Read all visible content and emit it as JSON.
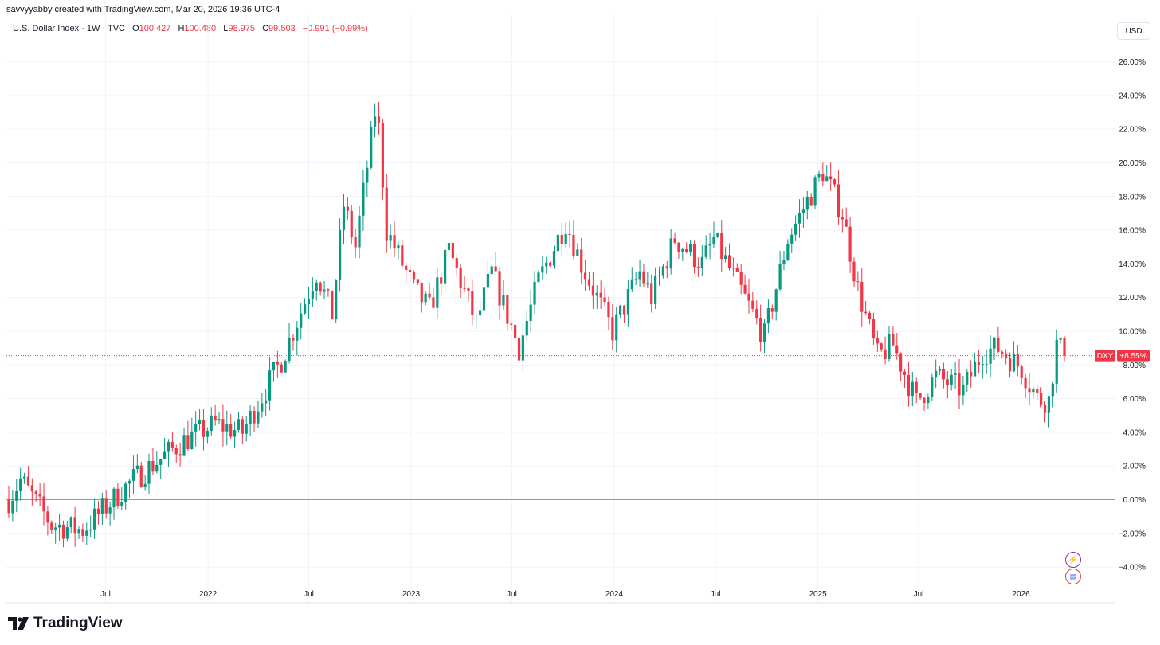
{
  "header": {
    "caption": "savvyyabby created with TradingView.com, Mar 20, 2026 19:36 UTC-4",
    "symbol": "U.S. Dollar Index · 1W · TVC",
    "o_label": "O",
    "o_value": "100.427",
    "h_label": "H",
    "h_value": "100.480",
    "l_label": "L",
    "l_value": "98.975",
    "c_label": "C",
    "c_value": "99.503",
    "change": "−0.991 (−0.99%)"
  },
  "currency_button": "USD",
  "brand": "TradingView",
  "badges": {
    "symbol": "DXY",
    "value": "+8.55%"
  },
  "icons": [
    "lightning-event-icon",
    "us-flag-event-icon"
  ],
  "colors": {
    "up": "#089981",
    "down": "#f23645",
    "grid": "#f0f3fa",
    "zero_line": "#9598a1"
  },
  "chart_data": {
    "type": "candlestick",
    "units": "percent change",
    "y_ticks": [
      "26.00%",
      "24.00%",
      "22.00%",
      "20.00%",
      "18.00%",
      "16.00%",
      "14.00%",
      "12.00%",
      "10.00%",
      "8.00%",
      "6.00%",
      "4.00%",
      "2.00%",
      "0.00%",
      "−2.00%",
      "−4.00%"
    ],
    "y_range": [
      -4.6,
      27.5
    ],
    "x_ticks": [
      "Jul",
      "2022",
      "Jul",
      "2023",
      "Jul",
      "2024",
      "Jul",
      "2025",
      "Jul",
      "2026"
    ],
    "x_range": [
      "2021-01-08",
      "2026-05-15"
    ],
    "last_value": 8.55,
    "key_points": [
      {
        "date": "2021-01-08",
        "value": 0.0
      },
      {
        "date": "2021-01-29",
        "value": 1.2
      },
      {
        "date": "2021-03-26",
        "value": -1.5
      },
      {
        "date": "2021-05-21",
        "value": -1.8
      },
      {
        "date": "2021-08-20",
        "value": 1.2
      },
      {
        "date": "2021-11-19",
        "value": 3.5
      },
      {
        "date": "2022-01-14",
        "value": 4.5
      },
      {
        "date": "2022-03-04",
        "value": 4.0
      },
      {
        "date": "2022-05-13",
        "value": 8.3
      },
      {
        "date": "2022-07-15",
        "value": 13.5
      },
      {
        "date": "2022-08-12",
        "value": 11.0
      },
      {
        "date": "2022-09-02",
        "value": 17.5
      },
      {
        "date": "2022-09-23",
        "value": 15.0
      },
      {
        "date": "2022-10-28",
        "value": 23.0
      },
      {
        "date": "2022-11-04",
        "value": 22.0
      },
      {
        "date": "2022-11-18",
        "value": 16.0
      },
      {
        "date": "2023-01-06",
        "value": 12.5
      },
      {
        "date": "2023-02-03",
        "value": 11.3
      },
      {
        "date": "2023-03-10",
        "value": 14.8
      },
      {
        "date": "2023-04-28",
        "value": 10.5
      },
      {
        "date": "2023-05-26",
        "value": 13.5
      },
      {
        "date": "2023-07-14",
        "value": 9.0
      },
      {
        "date": "2023-08-18",
        "value": 13.0
      },
      {
        "date": "2023-10-06",
        "value": 16.5
      },
      {
        "date": "2023-11-03",
        "value": 14.0
      },
      {
        "date": "2023-12-29",
        "value": 10.0
      },
      {
        "date": "2024-02-16",
        "value": 13.5
      },
      {
        "date": "2024-03-08",
        "value": 12.0
      },
      {
        "date": "2024-04-19",
        "value": 15.5
      },
      {
        "date": "2024-06-07",
        "value": 14.0
      },
      {
        "date": "2024-06-28",
        "value": 15.5
      },
      {
        "date": "2024-09-27",
        "value": 9.7
      },
      {
        "date": "2024-11-08",
        "value": 15.5
      },
      {
        "date": "2025-01-10",
        "value": 19.5
      },
      {
        "date": "2025-02-14",
        "value": 17.0
      },
      {
        "date": "2025-03-14",
        "value": 12.5
      },
      {
        "date": "2025-04-18",
        "value": 8.5
      },
      {
        "date": "2025-05-16",
        "value": 9.2
      },
      {
        "date": "2025-06-27",
        "value": 5.8
      },
      {
        "date": "2025-08-01",
        "value": 7.3
      },
      {
        "date": "2025-09-19",
        "value": 6.5
      },
      {
        "date": "2025-10-24",
        "value": 8.8
      },
      {
        "date": "2025-11-21",
        "value": 9.0
      },
      {
        "date": "2026-01-02",
        "value": 7.8
      },
      {
        "date": "2026-01-30",
        "value": 6.0
      },
      {
        "date": "2026-02-20",
        "value": 5.9
      },
      {
        "date": "2026-03-06",
        "value": 9.2
      },
      {
        "date": "2026-03-20",
        "value": 8.55
      }
    ]
  }
}
